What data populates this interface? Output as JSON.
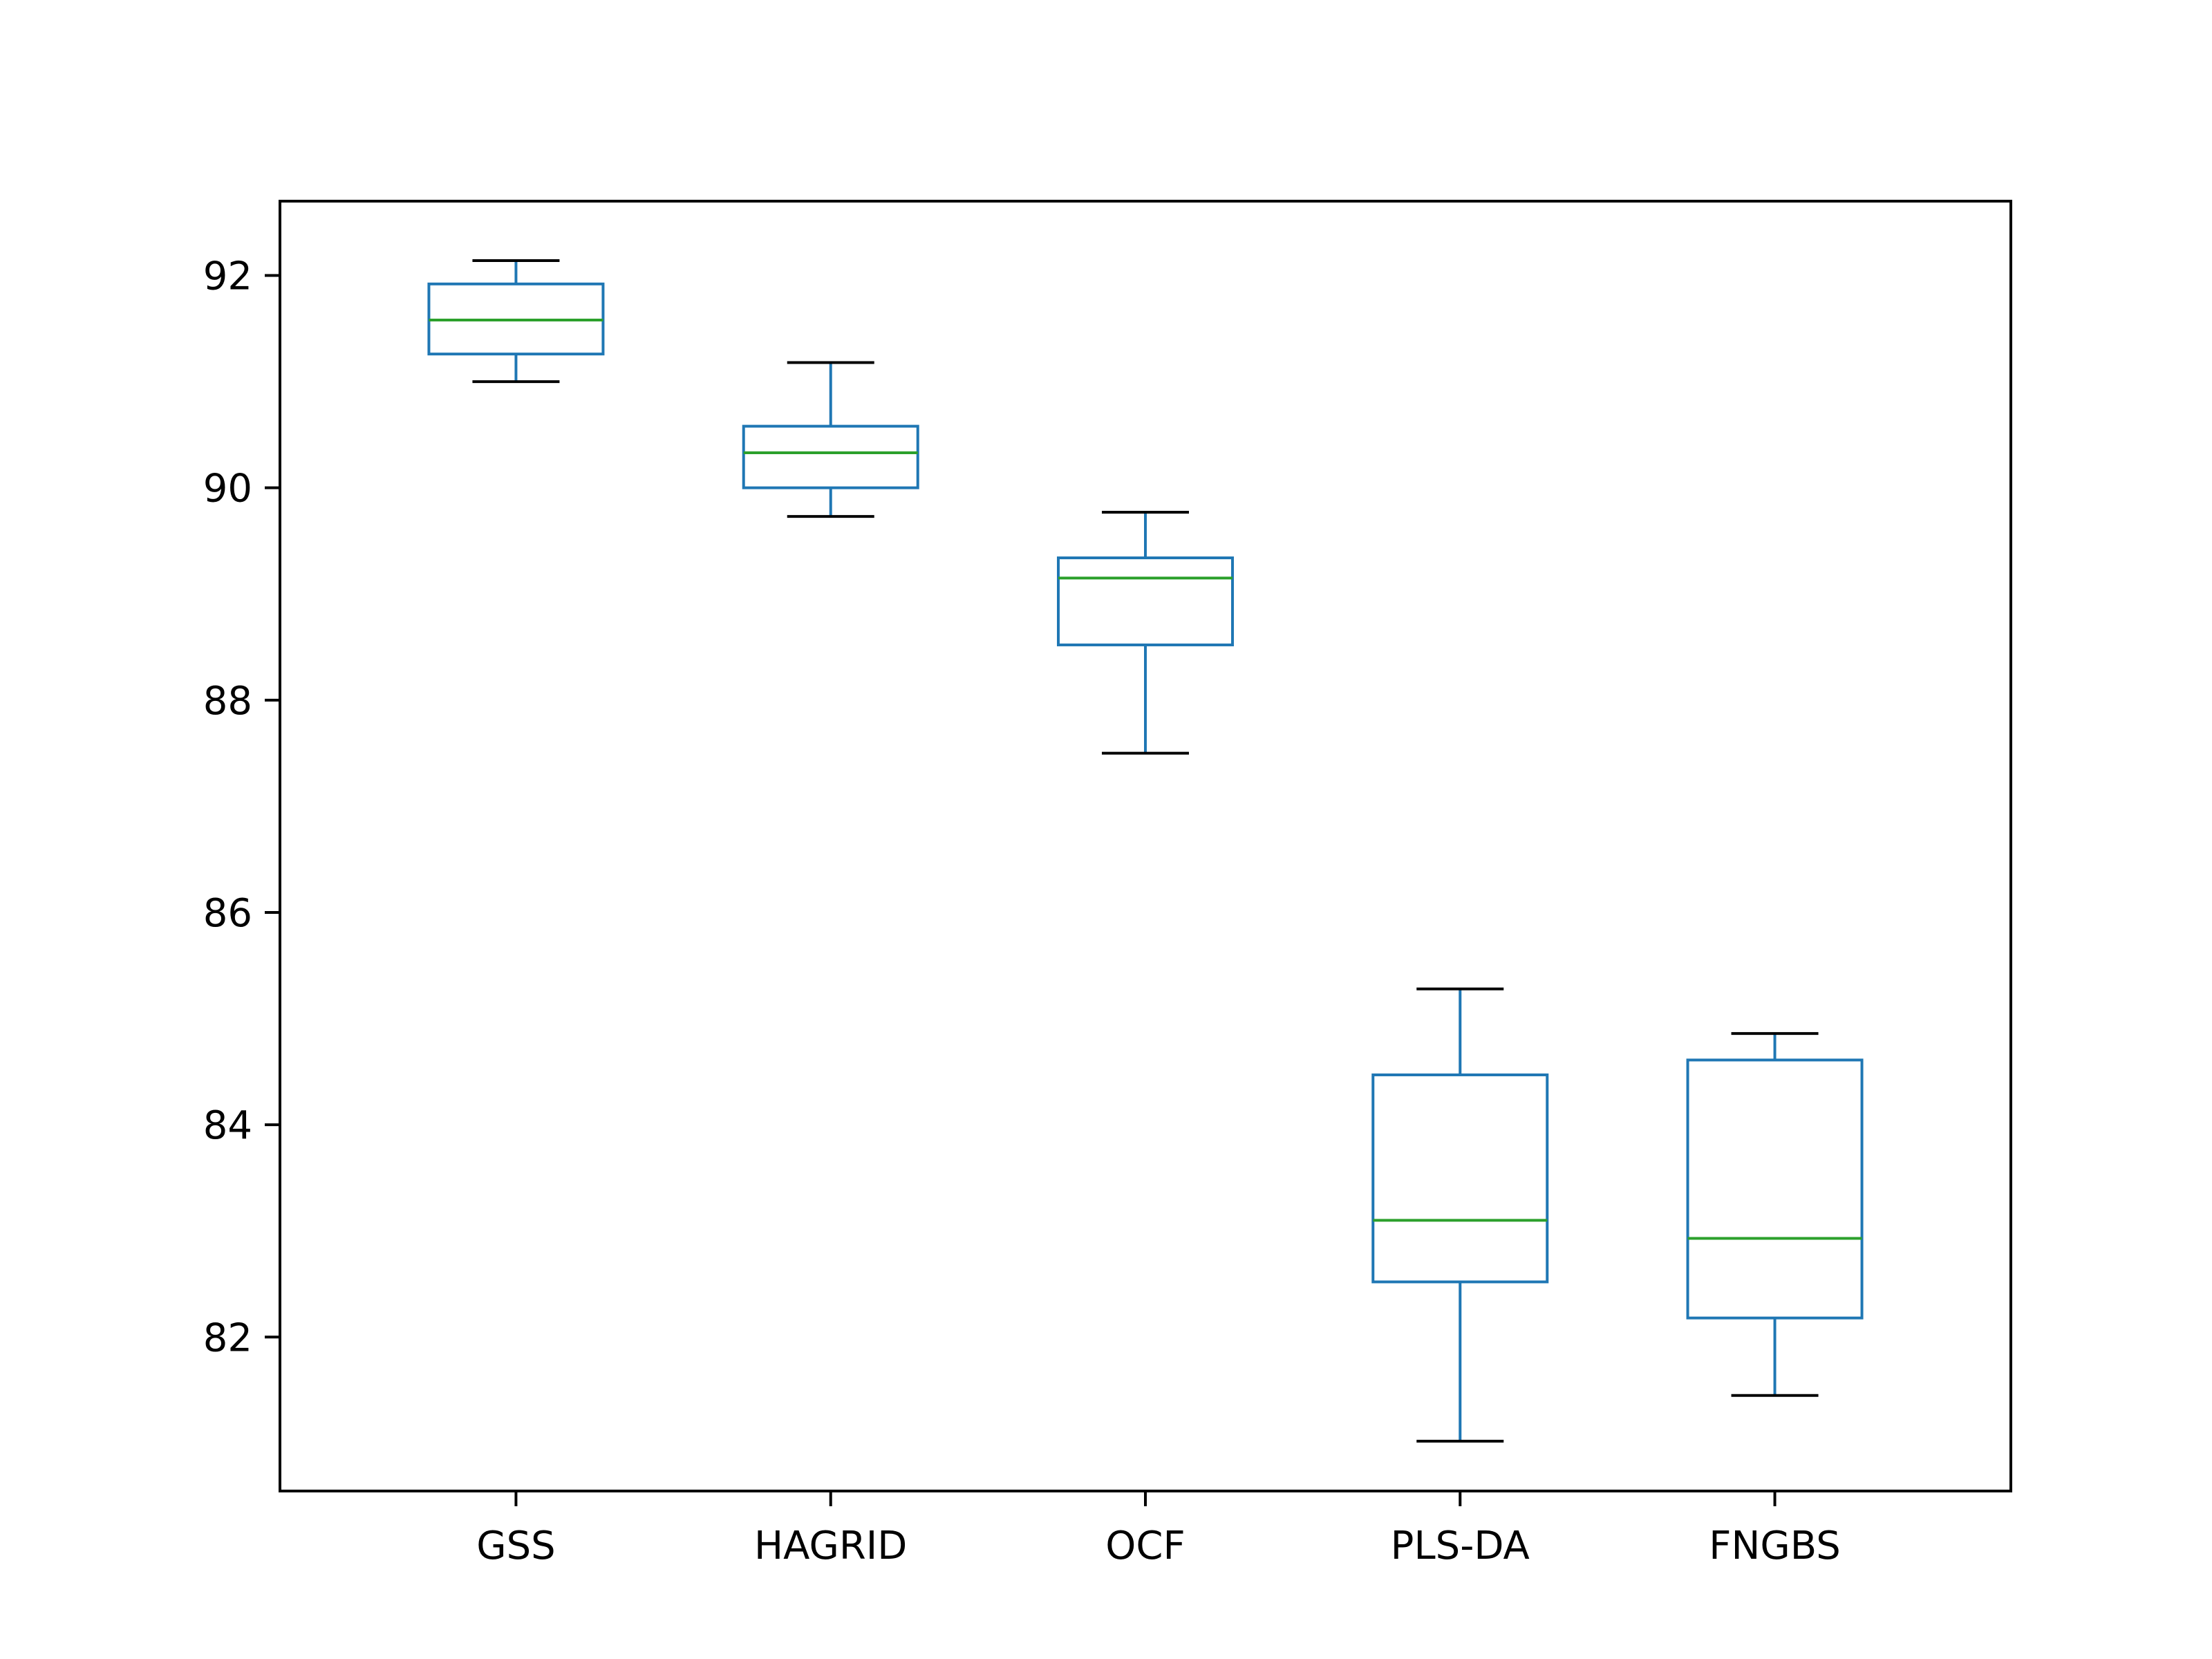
{
  "chart_data": {
    "type": "box",
    "title": "",
    "xlabel": "",
    "ylabel": "",
    "categories": [
      "GSS",
      "HAGRID",
      "OCF",
      "PLS-DA",
      "FNGBS"
    ],
    "boxes": [
      {
        "label": "GSS",
        "whisker_low": 91.0,
        "q1": 91.26,
        "median": 91.58,
        "q3": 91.92,
        "whisker_high": 92.14
      },
      {
        "label": "HAGRID",
        "whisker_low": 89.73,
        "q1": 90.0,
        "median": 90.33,
        "q3": 90.58,
        "whisker_high": 91.18
      },
      {
        "label": "OCF",
        "whisker_low": 87.5,
        "q1": 88.52,
        "median": 89.15,
        "q3": 89.34,
        "whisker_high": 89.77
      },
      {
        "label": "PLS-DA",
        "whisker_low": 81.02,
        "q1": 82.52,
        "median": 83.1,
        "q3": 84.47,
        "whisker_high": 85.28
      },
      {
        "label": "FNGBS",
        "whisker_low": 81.45,
        "q1": 82.18,
        "median": 82.93,
        "q3": 84.61,
        "whisker_high": 84.86
      }
    ],
    "yticks": [
      "82",
      "84",
      "86",
      "88",
      "90",
      "92"
    ],
    "ylim": [
      80.55,
      92.7
    ],
    "grid": false,
    "legend": "none",
    "colors": {
      "box": "#1f77b4",
      "median": "#2ca02c",
      "caps": "#000000",
      "axes": "#000000"
    }
  }
}
